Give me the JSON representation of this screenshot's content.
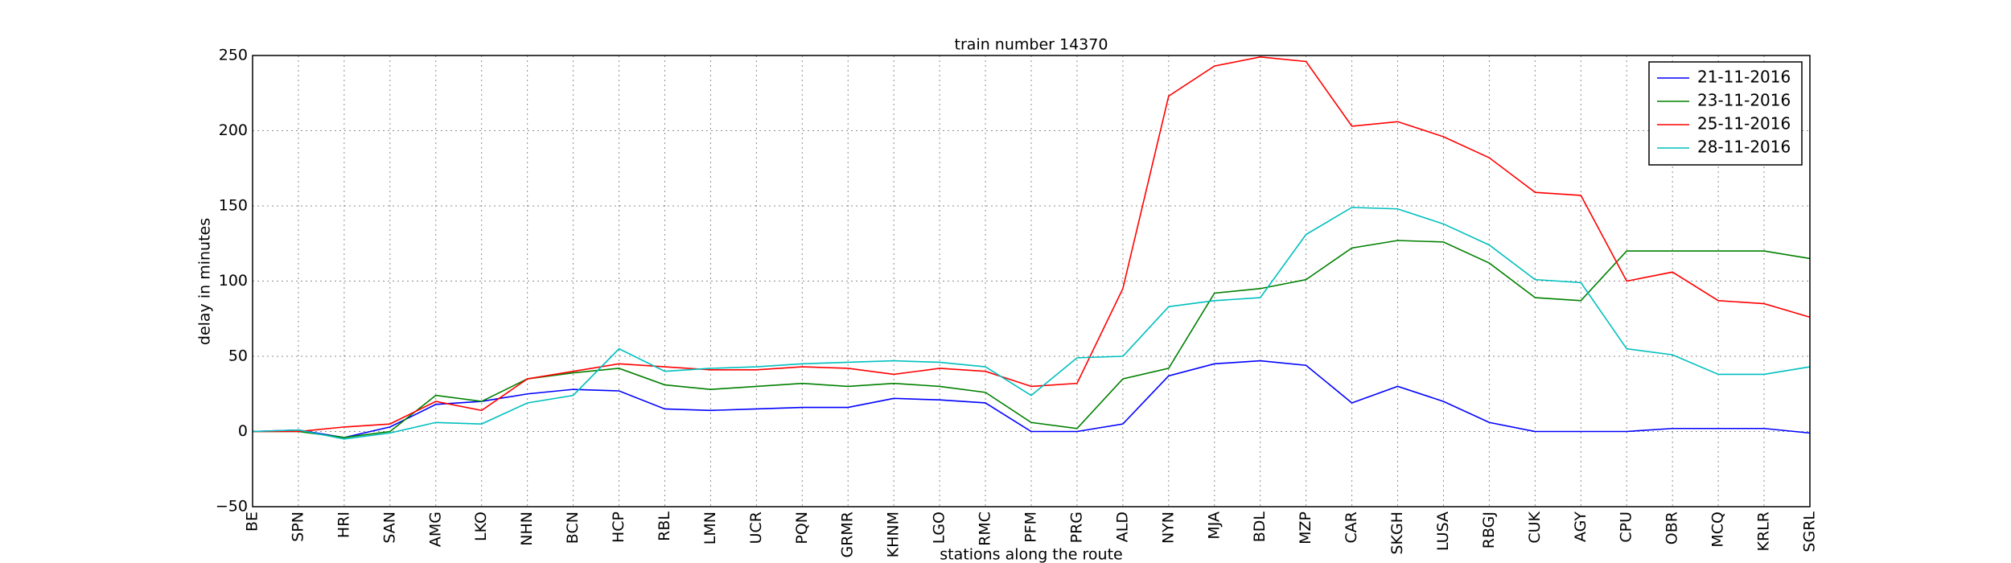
{
  "chart_data": {
    "type": "line",
    "title": "train number 14370",
    "xlabel": "stations along the route",
    "ylabel": "delay in minutes",
    "categories": [
      "BE",
      "SPN",
      "HRI",
      "SAN",
      "AMG",
      "LKO",
      "NHN",
      "BCN",
      "HCP",
      "RBL",
      "LMN",
      "UCR",
      "PQN",
      "GRMR",
      "KHNM",
      "LGO",
      "RMC",
      "PFM",
      "PRG",
      "ALD",
      "NYN",
      "MJA",
      "BDL",
      "MZP",
      "CAR",
      "SKGH",
      "LUSA",
      "RBGJ",
      "CUK",
      "AGY",
      "CPU",
      "OBR",
      "MCQ",
      "KRLR",
      "SGRL"
    ],
    "series": [
      {
        "name": "21-11-2016",
        "color": "#0000ff",
        "values": [
          0,
          1,
          -4,
          3,
          18,
          20,
          25,
          28,
          27,
          15,
          14,
          15,
          16,
          16,
          22,
          21,
          19,
          0,
          0,
          5,
          37,
          45,
          47,
          44,
          19,
          30,
          20,
          6,
          0,
          0,
          0,
          2,
          2,
          2,
          -1
        ]
      },
      {
        "name": "23-11-2016",
        "color": "#008000",
        "values": [
          0,
          0,
          -4,
          0,
          24,
          20,
          35,
          39,
          42,
          31,
          28,
          30,
          32,
          30,
          32,
          30,
          26,
          6,
          2,
          35,
          42,
          92,
          95,
          101,
          122,
          127,
          126,
          112,
          89,
          87,
          120,
          120,
          120,
          120,
          115
        ]
      },
      {
        "name": "25-11-2016",
        "color": "#ff0000",
        "values": [
          0,
          0,
          3,
          5,
          20,
          14,
          35,
          40,
          45,
          43,
          41,
          41,
          43,
          42,
          38,
          42,
          40,
          30,
          32,
          95,
          223,
          243,
          249,
          246,
          203,
          206,
          196,
          182,
          159,
          157,
          100,
          106,
          87,
          85,
          76
        ]
      },
      {
        "name": "28-11-2016",
        "color": "#00bfbf",
        "values": [
          0,
          1,
          -5,
          -1,
          6,
          5,
          19,
          24,
          55,
          40,
          42,
          43,
          45,
          46,
          47,
          46,
          43,
          24,
          49,
          50,
          83,
          87,
          89,
          131,
          149,
          148,
          138,
          124,
          101,
          99,
          55,
          51,
          38,
          38,
          43
        ]
      }
    ],
    "ylim": [
      -50,
      250
    ],
    "yticks": [
      {
        "value": -50,
        "label": "−50"
      },
      0,
      50,
      100,
      150,
      200,
      250
    ],
    "grid": true,
    "legend": "upper right"
  }
}
